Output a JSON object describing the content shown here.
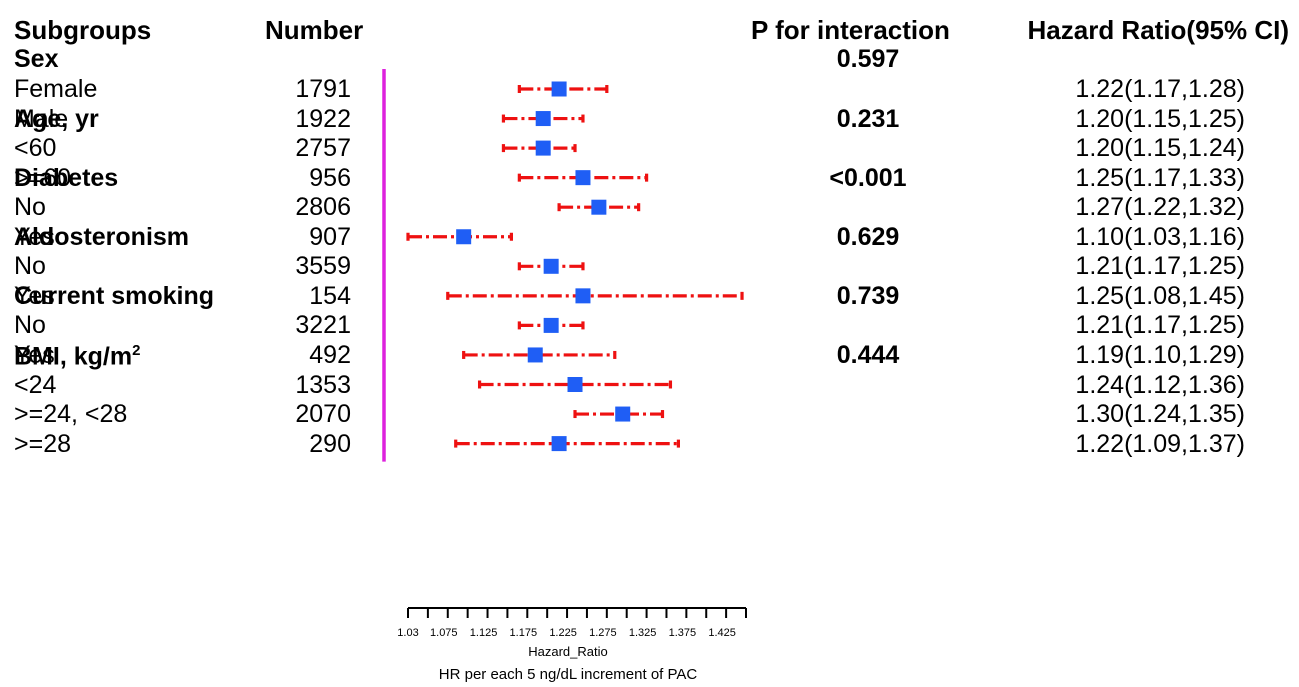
{
  "headers": {
    "subgroups": "Subgroups",
    "number": "Number",
    "p_interaction": "P for interaction",
    "hazard_ratio": "Hazard Ratio(95% CI)"
  },
  "colors": {
    "ci_line": "#ee1111",
    "point": "#1f5ef5",
    "reference_line": "#dd22dd",
    "axis": "#000000"
  },
  "chart_data": {
    "type": "forest",
    "xlabel": "Hazard_Ratio",
    "caption": "HR per each 5 ng/dL increment of PAC",
    "xlim": [
      1.03,
      1.455
    ],
    "ticks": [
      1.03,
      1.055,
      1.08,
      1.105,
      1.13,
      1.155,
      1.18,
      1.205,
      1.23,
      1.255,
      1.28,
      1.305,
      1.33,
      1.355,
      1.38,
      1.405,
      1.43,
      1.455
    ],
    "tick_labels": [
      "1.03",
      "1.075",
      "1.125",
      "1.175",
      "1.225",
      "1.275",
      "1.325",
      "1.375",
      "1.425"
    ],
    "tick_label_values": [
      1.03,
      1.075,
      1.125,
      1.175,
      1.225,
      1.275,
      1.325,
      1.375,
      1.425
    ],
    "groups": [
      {
        "name": "Sex",
        "name_sup": "",
        "p": "0.597",
        "rows": [
          {
            "label": "Female",
            "n": "1791",
            "hr": 1.22,
            "lo": 1.17,
            "hi": 1.28,
            "text": "1.22(1.17,1.28)"
          },
          {
            "label": "Male",
            "n": "1922",
            "hr": 1.2,
            "lo": 1.15,
            "hi": 1.25,
            "text": "1.20(1.15,1.25)"
          }
        ]
      },
      {
        "name": "Age, yr",
        "name_sup": "",
        "p": "0.231",
        "rows": [
          {
            "label": "<60",
            "n": "2757",
            "hr": 1.2,
            "lo": 1.15,
            "hi": 1.24,
            "text": "1.20(1.15,1.24)"
          },
          {
            "label": ">=60",
            "n": "956",
            "hr": 1.25,
            "lo": 1.17,
            "hi": 1.33,
            "text": "1.25(1.17,1.33)"
          }
        ]
      },
      {
        "name": "Diabetes",
        "name_sup": "",
        "p": "<0.001",
        "rows": [
          {
            "label": "No",
            "n": "2806",
            "hr": 1.27,
            "lo": 1.22,
            "hi": 1.32,
            "text": "1.27(1.22,1.32)"
          },
          {
            "label": "Yes",
            "n": "907",
            "hr": 1.1,
            "lo": 1.03,
            "hi": 1.16,
            "text": "1.10(1.03,1.16)"
          }
        ]
      },
      {
        "name": "Aldosteronism",
        "name_sup": "",
        "p": "0.629",
        "rows": [
          {
            "label": "No",
            "n": "3559",
            "hr": 1.21,
            "lo": 1.17,
            "hi": 1.25,
            "text": "1.21(1.17,1.25)"
          },
          {
            "label": "Yes",
            "n": "154",
            "hr": 1.25,
            "lo": 1.08,
            "hi": 1.45,
            "text": "1.25(1.08,1.45)"
          }
        ]
      },
      {
        "name": "Current smoking",
        "name_sup": "",
        "p": "0.739",
        "rows": [
          {
            "label": "No",
            "n": "3221",
            "hr": 1.21,
            "lo": 1.17,
            "hi": 1.25,
            "text": "1.21(1.17,1.25)"
          },
          {
            "label": "Yes",
            "n": "492",
            "hr": 1.19,
            "lo": 1.1,
            "hi": 1.29,
            "text": "1.19(1.10,1.29)"
          }
        ]
      },
      {
        "name": "BMI, kg/m",
        "name_sup": "2",
        "p": "0.444",
        "rows": [
          {
            "label": "<24",
            "n": "1353",
            "hr": 1.24,
            "lo": 1.12,
            "hi": 1.36,
            "text": "1.24(1.12,1.36)"
          },
          {
            "label": ">=24, <28",
            "n": "2070",
            "hr": 1.3,
            "lo": 1.24,
            "hi": 1.35,
            "text": "1.30(1.24,1.35)"
          },
          {
            "label": ">=28",
            "n": "290",
            "hr": 1.22,
            "lo": 1.09,
            "hi": 1.37,
            "text": "1.22(1.09,1.37)"
          }
        ]
      }
    ]
  }
}
